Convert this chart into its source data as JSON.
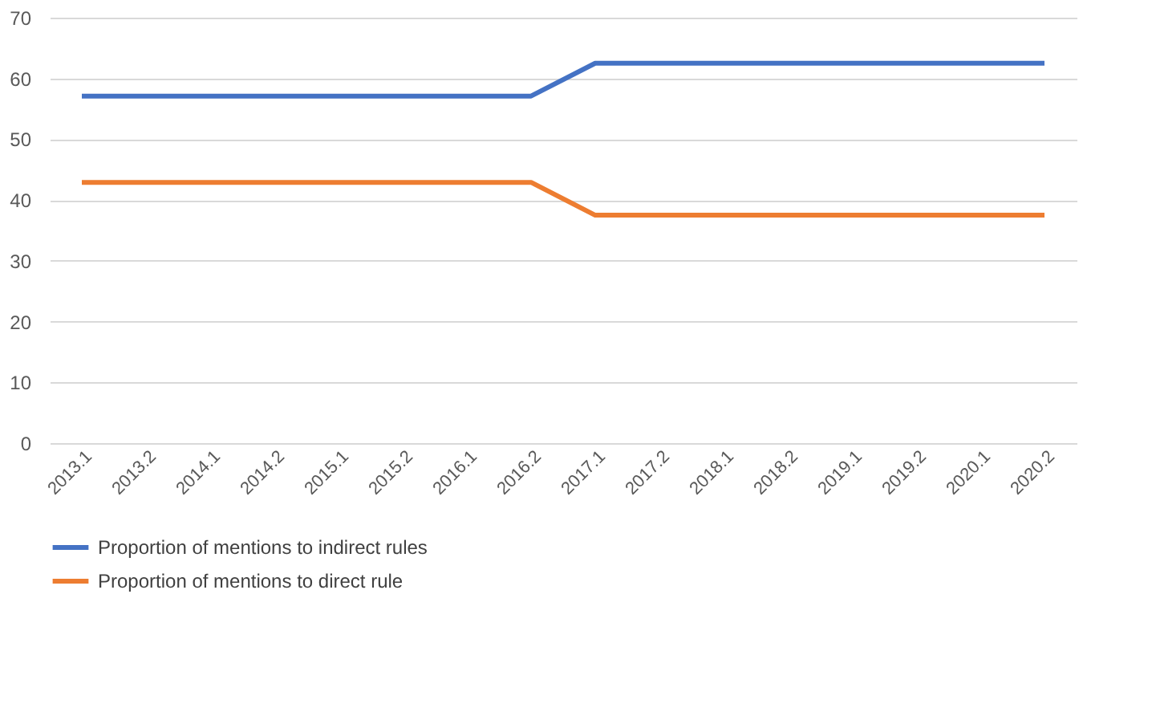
{
  "chart_data": {
    "type": "line",
    "categories": [
      "2013.1",
      "2013.2",
      "2014.1",
      "2014.2",
      "2015.1",
      "2015.2",
      "2016.1",
      "2016.2",
      "2017.1",
      "2017.2",
      "2018.1",
      "2018.2",
      "2019.1",
      "2019.2",
      "2020.1",
      "2020.2"
    ],
    "series": [
      {
        "name": "Proportion of mentions to indirect rules",
        "color": "#4472c4",
        "values": [
          57.1,
          57.1,
          57.1,
          57.1,
          57.1,
          57.1,
          57.1,
          57.1,
          62.5,
          62.5,
          62.5,
          62.5,
          62.5,
          62.5,
          62.5,
          62.5
        ]
      },
      {
        "name": "Proportion of mentions to direct rule",
        "color": "#ed7d31",
        "values": [
          42.9,
          42.9,
          42.9,
          42.9,
          42.9,
          42.9,
          42.9,
          42.9,
          37.5,
          37.5,
          37.5,
          37.5,
          37.5,
          37.5,
          37.5,
          37.5
        ]
      }
    ],
    "ylim": [
      0,
      70
    ],
    "yticks": [
      0,
      10,
      20,
      30,
      40,
      50,
      60,
      70
    ],
    "grid": "y",
    "legend": "bottom",
    "marker": "none",
    "line_style": "solid"
  }
}
